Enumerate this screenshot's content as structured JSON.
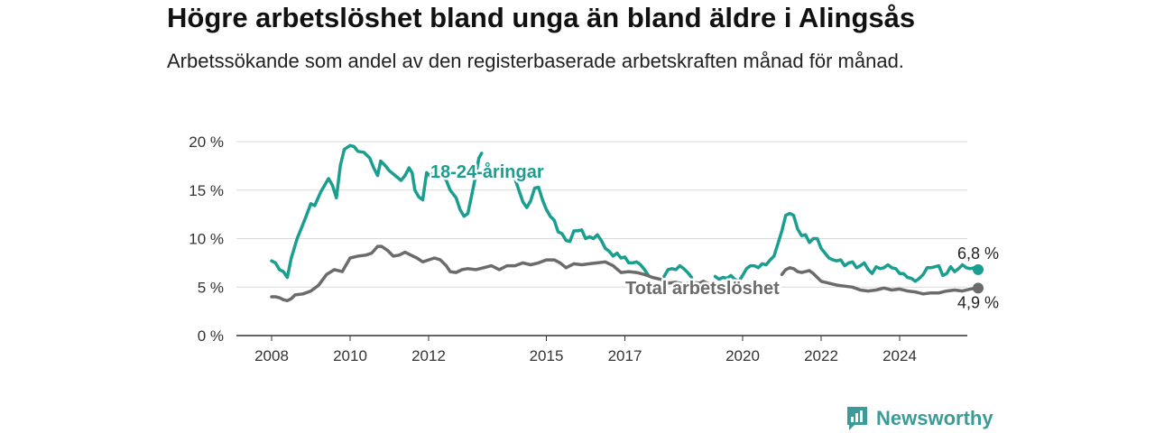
{
  "header": {
    "title": "Högre arbetslöshet bland unga än bland äldre i Alingsås",
    "subtitle": "Arbetssökande som andel av den registerbaserade arbetskraften månad för månad."
  },
  "brand": {
    "name": "Newsworthy",
    "color": "#3b9b96"
  },
  "chart_data": {
    "type": "line",
    "title": "Högre arbetslöshet bland unga än bland äldre i Alingsås",
    "subtitle": "Arbetssökande som andel av den registerbaserade arbetskraften månad för månad.",
    "xlabel": "",
    "ylabel": "",
    "ylim": [
      0,
      20
    ],
    "xlim": [
      2007.6,
      2025.5
    ],
    "y_ticks": [
      0,
      5,
      10,
      15,
      20
    ],
    "y_tick_labels": [
      "0 %",
      "5 %",
      "10 %",
      "15 %",
      "20 %"
    ],
    "x_ticks": [
      2008,
      2010,
      2012,
      2015,
      2017,
      2020,
      2022,
      2024
    ],
    "x_tick_labels": [
      "2008",
      "2010",
      "2012",
      "2015",
      "2017",
      "2020",
      "2022",
      "2024"
    ],
    "grid": true,
    "legend": "direct labels",
    "series": [
      {
        "name": "18-24-åringar",
        "color": "#1a9e8f",
        "end_label": "6,8 %",
        "points": [
          [
            2008.0,
            7.7
          ],
          [
            2008.1,
            7.5
          ],
          [
            2008.2,
            6.8
          ],
          [
            2008.3,
            6.6
          ],
          [
            2008.4,
            6.0
          ],
          [
            2008.5,
            8.0
          ],
          [
            2008.65,
            10.0
          ],
          [
            2008.85,
            12.0
          ],
          [
            2009.0,
            13.6
          ],
          [
            2009.1,
            13.4
          ],
          [
            2009.25,
            14.8
          ],
          [
            2009.45,
            16.2
          ],
          [
            2009.55,
            15.5
          ],
          [
            2009.65,
            14.2
          ],
          [
            2009.75,
            17.5
          ],
          [
            2009.85,
            19.2
          ],
          [
            2010.0,
            19.6
          ],
          [
            2010.1,
            19.5
          ],
          [
            2010.2,
            19.0
          ],
          [
            2010.35,
            18.9
          ],
          [
            2010.5,
            18.3
          ],
          [
            2010.6,
            17.3
          ],
          [
            2010.7,
            16.5
          ],
          [
            2010.78,
            18.0
          ],
          [
            2010.9,
            17.5
          ],
          [
            2011.0,
            17.0
          ],
          [
            2011.15,
            16.5
          ],
          [
            2011.3,
            16.0
          ],
          [
            2011.4,
            16.5
          ],
          [
            2011.5,
            17.3
          ],
          [
            2011.58,
            16.8
          ],
          [
            2011.65,
            15.0
          ],
          [
            2011.75,
            14.3
          ],
          [
            2011.85,
            14.0
          ],
          [
            2011.95,
            16.8
          ],
          [
            2012.05,
            16.4
          ],
          [
            2012.15,
            16.9
          ],
          [
            2012.25,
            17.3
          ],
          [
            2012.35,
            16.5
          ],
          [
            2012.45,
            16.0
          ],
          [
            2012.55,
            15.0
          ],
          [
            2012.7,
            14.2
          ],
          [
            2012.8,
            13.0
          ],
          [
            2012.9,
            12.3
          ],
          [
            2013.0,
            12.6
          ],
          [
            2013.1,
            14.5
          ],
          [
            2013.2,
            16.5
          ],
          [
            2013.28,
            18.3
          ],
          [
            2013.35,
            18.8
          ]
        ]
      },
      {
        "name": "18-24-åringar",
        "color": "#1a9e8f",
        "points": [
          [
            2014.2,
            16.2
          ],
          [
            2014.3,
            15.0
          ],
          [
            2014.4,
            13.8
          ],
          [
            2014.5,
            13.2
          ],
          [
            2014.6,
            13.9
          ],
          [
            2014.7,
            15.2
          ],
          [
            2014.8,
            15.3
          ],
          [
            2014.9,
            14.0
          ],
          [
            2015.0,
            13.0
          ],
          [
            2015.1,
            12.3
          ],
          [
            2015.2,
            11.9
          ],
          [
            2015.3,
            10.7
          ],
          [
            2015.4,
            10.5
          ],
          [
            2015.5,
            9.8
          ],
          [
            2015.6,
            9.7
          ],
          [
            2015.7,
            10.8
          ],
          [
            2015.8,
            10.8
          ],
          [
            2015.9,
            10.9
          ],
          [
            2016.0,
            10.0
          ],
          [
            2016.1,
            10.2
          ],
          [
            2016.2,
            10.0
          ],
          [
            2016.3,
            10.4
          ],
          [
            2016.4,
            9.8
          ],
          [
            2016.5,
            9.0
          ],
          [
            2016.6,
            8.7
          ],
          [
            2016.7,
            8.2
          ],
          [
            2016.8,
            8.5
          ],
          [
            2016.9,
            8.0
          ],
          [
            2017.0,
            8.1
          ],
          [
            2017.1,
            7.5
          ],
          [
            2017.2,
            7.5
          ],
          [
            2017.3,
            7.6
          ],
          [
            2017.4,
            7.3
          ],
          [
            2017.5,
            6.8
          ],
          [
            2017.6,
            6.2
          ]
        ]
      },
      {
        "name": "18-24-åringar",
        "color": "#1a9e8f",
        "points": [
          [
            2018.0,
            6.1
          ],
          [
            2018.1,
            6.8
          ],
          [
            2018.2,
            6.9
          ],
          [
            2018.3,
            6.8
          ],
          [
            2018.4,
            7.2
          ],
          [
            2018.5,
            6.9
          ],
          [
            2018.6,
            6.5
          ],
          [
            2018.7,
            6.0
          ]
        ]
      },
      {
        "name": "18-24-åringar",
        "color": "#1a9e8f",
        "points": [
          [
            2019.3,
            6.1
          ],
          [
            2019.4,
            5.8
          ],
          [
            2019.5,
            6.0
          ],
          [
            2019.6,
            5.9
          ],
          [
            2019.7,
            6.2
          ],
          [
            2019.8,
            5.8
          ],
          [
            2019.9,
            5.6
          ],
          [
            2020.0,
            6.2
          ],
          [
            2020.1,
            6.9
          ],
          [
            2020.2,
            7.2
          ],
          [
            2020.3,
            7.2
          ],
          [
            2020.4,
            7.0
          ],
          [
            2020.5,
            7.4
          ],
          [
            2020.6,
            7.3
          ],
          [
            2020.7,
            7.8
          ],
          [
            2020.8,
            8.2
          ],
          [
            2020.9,
            9.5
          ],
          [
            2021.0,
            10.8
          ],
          [
            2021.1,
            12.4
          ],
          [
            2021.2,
            12.6
          ],
          [
            2021.3,
            12.4
          ],
          [
            2021.4,
            11.0
          ],
          [
            2021.5,
            10.3
          ],
          [
            2021.6,
            10.4
          ],
          [
            2021.7,
            9.6
          ],
          [
            2021.8,
            10.0
          ],
          [
            2021.9,
            10.0
          ],
          [
            2022.0,
            9.0
          ],
          [
            2022.1,
            8.5
          ],
          [
            2022.2,
            8.0
          ],
          [
            2022.3,
            7.8
          ],
          [
            2022.4,
            7.7
          ],
          [
            2022.5,
            7.8
          ],
          [
            2022.6,
            7.2
          ],
          [
            2022.7,
            7.5
          ],
          [
            2022.8,
            7.6
          ],
          [
            2022.9,
            7.0
          ],
          [
            2023.0,
            7.2
          ],
          [
            2023.1,
            7.5
          ],
          [
            2023.2,
            6.8
          ],
          [
            2023.3,
            6.4
          ],
          [
            2023.4,
            7.1
          ],
          [
            2023.5,
            6.9
          ],
          [
            2023.6,
            7.0
          ],
          [
            2023.7,
            7.3
          ],
          [
            2023.8,
            7.0
          ],
          [
            2023.9,
            6.9
          ],
          [
            2024.0,
            6.4
          ],
          [
            2024.1,
            6.4
          ],
          [
            2024.2,
            6.0
          ],
          [
            2024.3,
            5.9
          ],
          [
            2024.4,
            5.6
          ],
          [
            2024.5,
            5.9
          ],
          [
            2024.6,
            6.3
          ],
          [
            2024.7,
            7.0
          ],
          [
            2024.8,
            7.0
          ],
          [
            2024.9,
            7.1
          ],
          [
            2025.0,
            7.2
          ],
          [
            2025.1,
            6.2
          ],
          [
            2025.2,
            6.4
          ],
          [
            2025.3,
            7.1
          ],
          [
            2025.4,
            6.6
          ],
          [
            2025.5,
            6.9
          ],
          [
            2025.6,
            7.3
          ],
          [
            2025.7,
            7.0
          ],
          [
            2025.8,
            6.9
          ],
          [
            2025.9,
            7.0
          ],
          [
            2026.0,
            6.8
          ]
        ]
      },
      {
        "name": "Total arbetslöshet",
        "color": "#6b6b6b",
        "end_label": "4,9 %",
        "points": [
          [
            2008.0,
            4.0
          ],
          [
            2008.1,
            4.0
          ],
          [
            2008.2,
            3.9
          ],
          [
            2008.3,
            3.7
          ],
          [
            2008.4,
            3.6
          ],
          [
            2008.5,
            3.8
          ],
          [
            2008.6,
            4.2
          ],
          [
            2008.8,
            4.3
          ],
          [
            2009.0,
            4.6
          ],
          [
            2009.2,
            5.2
          ],
          [
            2009.4,
            6.3
          ],
          [
            2009.6,
            6.8
          ],
          [
            2009.8,
            6.6
          ],
          [
            2010.0,
            8.0
          ],
          [
            2010.2,
            8.2
          ],
          [
            2010.4,
            8.3
          ],
          [
            2010.55,
            8.5
          ],
          [
            2010.7,
            9.2
          ],
          [
            2010.8,
            9.2
          ],
          [
            2010.95,
            8.8
          ],
          [
            2011.1,
            8.2
          ],
          [
            2011.25,
            8.3
          ],
          [
            2011.4,
            8.6
          ],
          [
            2011.55,
            8.3
          ],
          [
            2011.7,
            8.0
          ],
          [
            2011.85,
            7.6
          ],
          [
            2012.0,
            7.8
          ],
          [
            2012.15,
            8.0
          ],
          [
            2012.3,
            7.8
          ],
          [
            2012.45,
            7.2
          ],
          [
            2012.55,
            6.6
          ],
          [
            2012.7,
            6.5
          ],
          [
            2012.85,
            6.8
          ],
          [
            2013.0,
            6.9
          ],
          [
            2013.2,
            6.8
          ],
          [
            2013.4,
            7.0
          ],
          [
            2013.6,
            7.2
          ],
          [
            2013.8,
            6.8
          ],
          [
            2014.0,
            7.2
          ],
          [
            2014.2,
            7.2
          ],
          [
            2014.4,
            7.5
          ],
          [
            2014.6,
            7.3
          ],
          [
            2014.8,
            7.5
          ],
          [
            2015.0,
            7.8
          ],
          [
            2015.2,
            7.8
          ],
          [
            2015.35,
            7.5
          ],
          [
            2015.5,
            7.0
          ],
          [
            2015.7,
            7.4
          ],
          [
            2015.9,
            7.3
          ],
          [
            2016.1,
            7.4
          ],
          [
            2016.3,
            7.5
          ],
          [
            2016.5,
            7.6
          ],
          [
            2016.7,
            7.2
          ],
          [
            2016.9,
            6.5
          ],
          [
            2017.1,
            6.6
          ],
          [
            2017.3,
            6.5
          ],
          [
            2017.5,
            6.3
          ],
          [
            2017.7,
            6.0
          ],
          [
            2017.9,
            5.8
          ],
          [
            2018.1,
            5.4
          ],
          [
            2018.3,
            5.5
          ],
          [
            2018.5,
            5.3
          ],
          [
            2018.7,
            5.5
          ],
          [
            2018.9,
            5.4
          ],
          [
            2019.0,
            5.6
          ],
          [
            2019.2,
            5.2
          ],
          [
            2019.4,
            4.8
          ],
          [
            2019.6,
            4.9
          ],
          [
            2019.8,
            4.8
          ],
          [
            2020.0,
            4.9
          ]
        ]
      },
      {
        "name": "Total arbetslöshet",
        "color": "#6b6b6b",
        "points": [
          [
            2021.0,
            6.3
          ],
          [
            2021.1,
            6.8
          ],
          [
            2021.2,
            7.0
          ],
          [
            2021.3,
            6.9
          ],
          [
            2021.4,
            6.6
          ],
          [
            2021.5,
            6.5
          ],
          [
            2021.6,
            6.6
          ],
          [
            2021.7,
            6.7
          ],
          [
            2021.8,
            6.4
          ],
          [
            2021.9,
            6.0
          ],
          [
            2022.0,
            5.6
          ],
          [
            2022.2,
            5.4
          ],
          [
            2022.4,
            5.2
          ],
          [
            2022.6,
            5.1
          ],
          [
            2022.8,
            5.0
          ],
          [
            2023.0,
            4.7
          ],
          [
            2023.2,
            4.6
          ],
          [
            2023.4,
            4.7
          ],
          [
            2023.6,
            4.9
          ],
          [
            2023.8,
            4.7
          ],
          [
            2024.0,
            4.8
          ],
          [
            2024.2,
            4.6
          ],
          [
            2024.4,
            4.5
          ],
          [
            2024.6,
            4.3
          ],
          [
            2024.8,
            4.4
          ],
          [
            2025.0,
            4.4
          ],
          [
            2025.2,
            4.6
          ],
          [
            2025.4,
            4.7
          ],
          [
            2025.6,
            4.6
          ],
          [
            2025.8,
            4.8
          ],
          [
            2026.0,
            4.9
          ]
        ]
      }
    ],
    "annotations": [
      {
        "text": "18-24-åringar",
        "color": "#1a9e8f"
      },
      {
        "text": "Total arbetslöshet",
        "color": "#6b6b6b"
      }
    ]
  }
}
